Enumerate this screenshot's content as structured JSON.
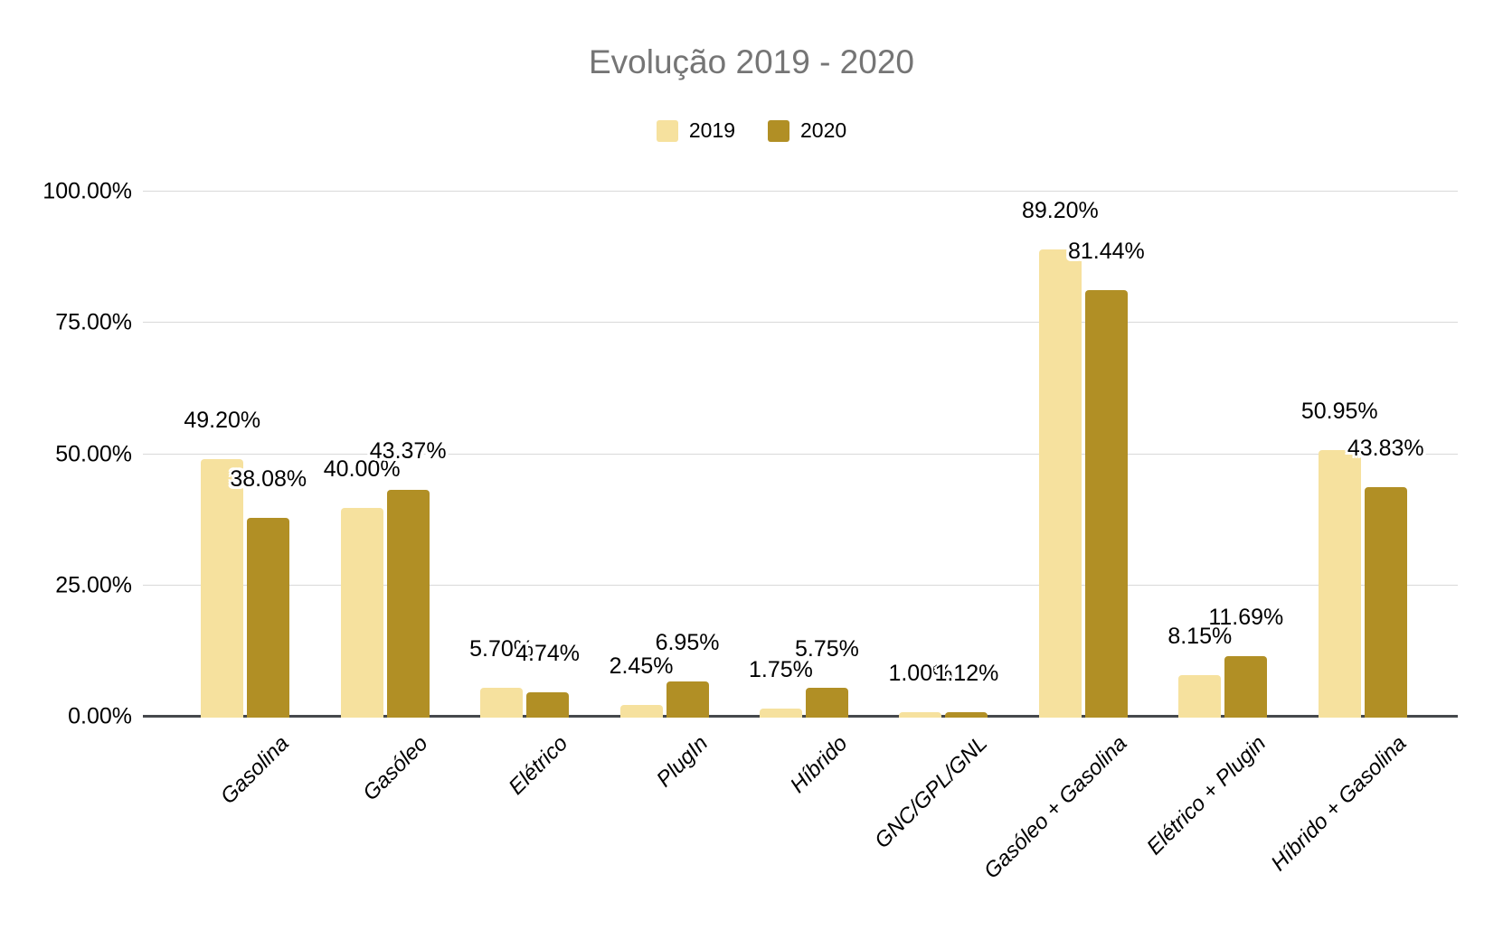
{
  "header": {
    "title": "Evolução 2019 - 2020",
    "title_color": "#757575"
  },
  "legend": {
    "items": [
      {
        "label": "2019",
        "color": "#F6E19E"
      },
      {
        "label": "2020",
        "color": "#B18F25"
      }
    ]
  },
  "y_axis": {
    "ticks": [
      {
        "label": "100.00%",
        "value": 100
      },
      {
        "label": "75.00%",
        "value": 75
      },
      {
        "label": "50.00%",
        "value": 50
      },
      {
        "label": "25.00%",
        "value": 25
      },
      {
        "label": "0.00%",
        "value": 0
      }
    ]
  },
  "chart_data": {
    "type": "bar",
    "title": "Evolução 2019 - 2020",
    "categories": [
      "Gasolina",
      "Gasóleo",
      "Elétrico",
      "PlugIn",
      "Híbrido",
      "GNC/GPL/GNL",
      "Gasóleo + Gasolina",
      "Elétrico + Plugin",
      "Híbrido + Gasolina"
    ],
    "series": [
      {
        "name": "2019",
        "color": "#F6E19E",
        "values": [
          49.2,
          40.0,
          5.7,
          2.45,
          1.75,
          1.0,
          89.2,
          8.15,
          50.95
        ],
        "labels": [
          "49.20%",
          "40.00%",
          "5.70%",
          "2.45%",
          "1.75%",
          "1.00%",
          "89.20%",
          "8.15%",
          "50.95%"
        ]
      },
      {
        "name": "2020",
        "color": "#B18F25",
        "values": [
          38.08,
          43.37,
          4.74,
          6.95,
          5.75,
          1.12,
          81.44,
          11.69,
          43.83
        ],
        "labels": [
          "38.08%",
          "43.37%",
          "4.74%",
          "6.95%",
          "5.75%",
          "1.12%",
          "81.44%",
          "11.69%",
          "43.83%"
        ]
      }
    ],
    "xlabel": "",
    "ylabel": "",
    "ylim": [
      0,
      100
    ],
    "yticks_percent": [
      0,
      25,
      50,
      75,
      100
    ],
    "grid": true,
    "legend_position": "top",
    "colors": {
      "grid": "#d9d9d9",
      "axis": "#45484c",
      "label_text": "#000000"
    }
  }
}
